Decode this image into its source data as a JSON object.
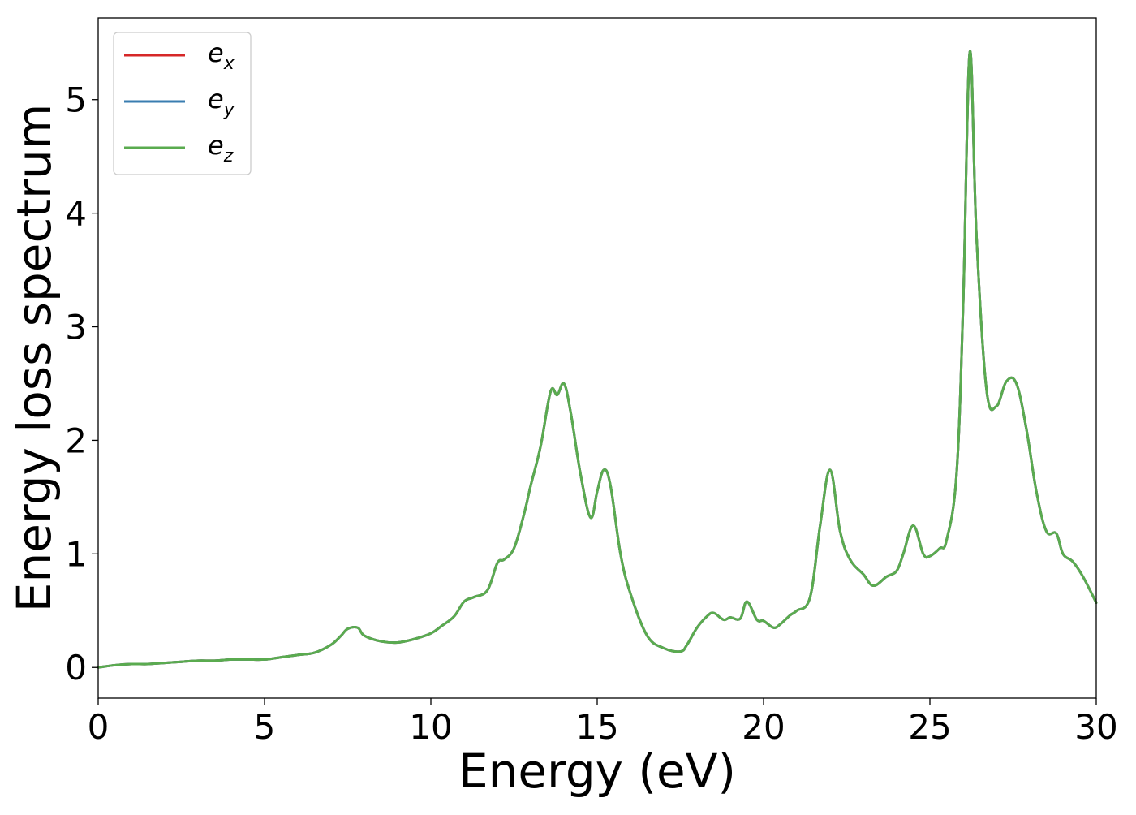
{
  "chart_data": {
    "type": "line",
    "title": "",
    "xlabel": "Energy (eV)",
    "ylabel": "Energy loss spectrum",
    "xlim": [
      0,
      30
    ],
    "ylim": [
      -0.27,
      5.72
    ],
    "xticks": [
      0,
      5,
      10,
      15,
      20,
      25,
      30
    ],
    "yticks": [
      0,
      1,
      2,
      3,
      4,
      5
    ],
    "x_tick_labels": [
      "0",
      "5",
      "10",
      "15",
      "20",
      "25",
      "30"
    ],
    "y_tick_labels": [
      "0",
      "1",
      "2",
      "3",
      "4",
      "5"
    ],
    "grid": false,
    "legend_position": "upper-left",
    "series": [
      {
        "name": "e_x",
        "label_base": "e",
        "label_sub": "x",
        "color": "#d62728",
        "x": [
          0,
          0.5,
          1,
          1.5,
          2,
          2.5,
          3,
          3.5,
          4,
          4.5,
          5,
          5.5,
          6,
          6.5,
          7,
          7.3,
          7.5,
          7.8,
          8,
          8.5,
          9,
          9.5,
          10,
          10.3,
          10.7,
          11,
          11.3,
          11.7,
          12,
          12.2,
          12.5,
          12.8,
          13,
          13.3,
          13.6,
          13.8,
          14,
          14.2,
          14.5,
          14.8,
          15,
          15.2,
          15.4,
          15.7,
          16,
          16.5,
          17,
          17.5,
          17.7,
          18,
          18.3,
          18.5,
          18.8,
          19,
          19.3,
          19.5,
          19.8,
          20,
          20.3,
          20.5,
          20.8,
          21,
          21.4,
          21.7,
          22,
          22.3,
          22.6,
          23,
          23.3,
          23.7,
          24,
          24.2,
          24.5,
          24.8,
          25,
          25.3,
          25.5,
          25.8,
          26,
          26.2,
          26.4,
          26.7,
          27,
          27.3,
          27.6,
          27.9,
          28.2,
          28.5,
          28.8,
          29,
          29.3,
          29.6,
          30
        ],
        "values": [
          0,
          0.02,
          0.03,
          0.03,
          0.04,
          0.05,
          0.06,
          0.06,
          0.07,
          0.07,
          0.07,
          0.09,
          0.11,
          0.13,
          0.2,
          0.28,
          0.34,
          0.35,
          0.28,
          0.23,
          0.22,
          0.25,
          0.3,
          0.36,
          0.45,
          0.58,
          0.62,
          0.68,
          0.92,
          0.95,
          1.05,
          1.35,
          1.6,
          1.95,
          2.43,
          2.4,
          2.5,
          2.25,
          1.7,
          1.32,
          1.55,
          1.74,
          1.6,
          1.0,
          0.65,
          0.28,
          0.17,
          0.14,
          0.2,
          0.35,
          0.45,
          0.48,
          0.42,
          0.44,
          0.43,
          0.58,
          0.42,
          0.41,
          0.35,
          0.38,
          0.46,
          0.5,
          0.62,
          1.25,
          1.74,
          1.2,
          0.95,
          0.82,
          0.72,
          0.8,
          0.85,
          1.0,
          1.25,
          1.0,
          0.98,
          1.05,
          1.12,
          1.7,
          3.2,
          5.42,
          3.8,
          2.45,
          2.3,
          2.52,
          2.5,
          2.1,
          1.55,
          1.2,
          1.18,
          1.0,
          0.93,
          0.8,
          0.57
        ]
      },
      {
        "name": "e_y",
        "label_base": "e",
        "label_sub": "y",
        "color": "#3a7db0",
        "x": [
          0,
          0.5,
          1,
          1.5,
          2,
          2.5,
          3,
          3.5,
          4,
          4.5,
          5,
          5.5,
          6,
          6.5,
          7,
          7.3,
          7.5,
          7.8,
          8,
          8.5,
          9,
          9.5,
          10,
          10.3,
          10.7,
          11,
          11.3,
          11.7,
          12,
          12.2,
          12.5,
          12.8,
          13,
          13.3,
          13.6,
          13.8,
          14,
          14.2,
          14.5,
          14.8,
          15,
          15.2,
          15.4,
          15.7,
          16,
          16.5,
          17,
          17.5,
          17.7,
          18,
          18.3,
          18.5,
          18.8,
          19,
          19.3,
          19.5,
          19.8,
          20,
          20.3,
          20.5,
          20.8,
          21,
          21.4,
          21.7,
          22,
          22.3,
          22.6,
          23,
          23.3,
          23.7,
          24,
          24.2,
          24.5,
          24.8,
          25,
          25.3,
          25.5,
          25.8,
          26,
          26.2,
          26.4,
          26.7,
          27,
          27.3,
          27.6,
          27.9,
          28.2,
          28.5,
          28.8,
          29,
          29.3,
          29.6,
          30
        ],
        "values": [
          0,
          0.02,
          0.03,
          0.03,
          0.04,
          0.05,
          0.06,
          0.06,
          0.07,
          0.07,
          0.07,
          0.09,
          0.11,
          0.13,
          0.2,
          0.28,
          0.34,
          0.35,
          0.28,
          0.23,
          0.22,
          0.25,
          0.3,
          0.36,
          0.45,
          0.58,
          0.62,
          0.68,
          0.92,
          0.95,
          1.05,
          1.35,
          1.6,
          1.95,
          2.43,
          2.4,
          2.5,
          2.25,
          1.7,
          1.32,
          1.55,
          1.74,
          1.6,
          1.0,
          0.65,
          0.28,
          0.17,
          0.14,
          0.2,
          0.35,
          0.45,
          0.48,
          0.42,
          0.44,
          0.43,
          0.58,
          0.42,
          0.41,
          0.35,
          0.38,
          0.46,
          0.5,
          0.62,
          1.25,
          1.74,
          1.2,
          0.95,
          0.82,
          0.72,
          0.8,
          0.85,
          1.0,
          1.25,
          1.0,
          0.98,
          1.05,
          1.12,
          1.7,
          3.2,
          5.42,
          3.8,
          2.45,
          2.3,
          2.52,
          2.5,
          2.1,
          1.55,
          1.2,
          1.18,
          1.0,
          0.93,
          0.8,
          0.57
        ]
      },
      {
        "name": "e_z",
        "label_base": "e",
        "label_sub": "z",
        "color": "#5aab4f",
        "x": [
          0,
          0.5,
          1,
          1.5,
          2,
          2.5,
          3,
          3.5,
          4,
          4.5,
          5,
          5.5,
          6,
          6.5,
          7,
          7.3,
          7.5,
          7.8,
          8,
          8.5,
          9,
          9.5,
          10,
          10.3,
          10.7,
          11,
          11.3,
          11.7,
          12,
          12.2,
          12.5,
          12.8,
          13,
          13.3,
          13.6,
          13.8,
          14,
          14.2,
          14.5,
          14.8,
          15,
          15.2,
          15.4,
          15.7,
          16,
          16.5,
          17,
          17.5,
          17.7,
          18,
          18.3,
          18.5,
          18.8,
          19,
          19.3,
          19.5,
          19.8,
          20,
          20.3,
          20.5,
          20.8,
          21,
          21.4,
          21.7,
          22,
          22.3,
          22.6,
          23,
          23.3,
          23.7,
          24,
          24.2,
          24.5,
          24.8,
          25,
          25.3,
          25.5,
          25.8,
          26,
          26.2,
          26.4,
          26.7,
          27,
          27.3,
          27.6,
          27.9,
          28.2,
          28.5,
          28.8,
          29,
          29.3,
          29.6,
          30
        ],
        "values": [
          0,
          0.02,
          0.03,
          0.03,
          0.04,
          0.05,
          0.06,
          0.06,
          0.07,
          0.07,
          0.07,
          0.09,
          0.11,
          0.13,
          0.2,
          0.28,
          0.34,
          0.35,
          0.28,
          0.23,
          0.22,
          0.25,
          0.3,
          0.36,
          0.45,
          0.58,
          0.62,
          0.68,
          0.92,
          0.95,
          1.05,
          1.35,
          1.6,
          1.95,
          2.43,
          2.4,
          2.5,
          2.25,
          1.7,
          1.32,
          1.55,
          1.74,
          1.6,
          1.0,
          0.65,
          0.28,
          0.17,
          0.14,
          0.2,
          0.35,
          0.45,
          0.48,
          0.42,
          0.44,
          0.43,
          0.58,
          0.42,
          0.41,
          0.35,
          0.38,
          0.46,
          0.5,
          0.62,
          1.25,
          1.74,
          1.2,
          0.95,
          0.82,
          0.72,
          0.8,
          0.85,
          1.0,
          1.25,
          1.0,
          0.98,
          1.05,
          1.12,
          1.7,
          3.2,
          5.42,
          3.8,
          2.45,
          2.3,
          2.52,
          2.5,
          2.1,
          1.55,
          1.2,
          1.18,
          1.0,
          0.93,
          0.8,
          0.57
        ]
      }
    ]
  }
}
